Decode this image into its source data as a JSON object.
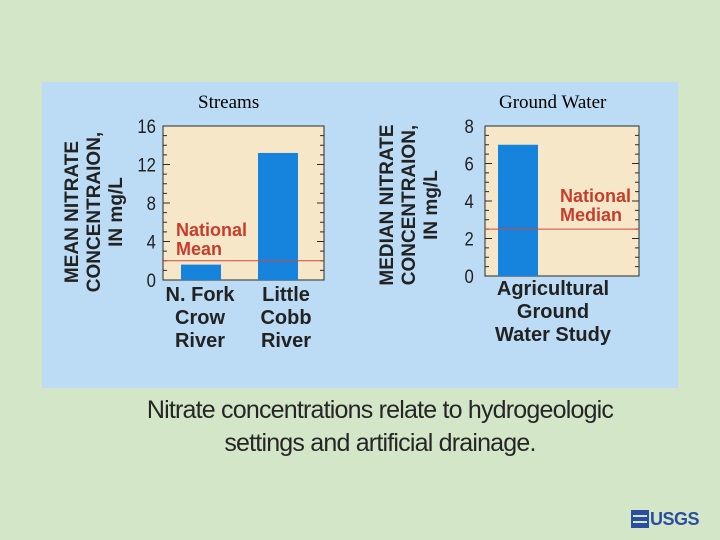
{
  "slide": {
    "caption_line1": "Nitrate concentrations relate to hydrogeologic",
    "caption_line2": "settings and artificial drainage.",
    "logo_text": "USGS"
  },
  "colors": {
    "background": "#d3e6c8",
    "panel": "#bcdcf6",
    "plot_area": "#f5e7c8",
    "bar": "#1684dc",
    "reference_line": "#d04a3c",
    "reference_label": "#c83c2c",
    "axis_text": "#1f1f1f",
    "logo": "#2b4fa0"
  },
  "chart_data": [
    {
      "type": "bar",
      "panel_title": "Streams",
      "ylabel_lines": [
        "MEAN NITRATE",
        "CONCENTRAION,",
        "IN mg/L"
      ],
      "ylim": [
        0,
        16
      ],
      "yticks": [
        "0",
        "4",
        "8",
        "12",
        "16"
      ],
      "categories": [
        [
          "N. Fork",
          "Crow",
          "River"
        ],
        [
          "Little",
          "Cobb",
          "River"
        ]
      ],
      "values": [
        1.6,
        13.2
      ],
      "reference_line": {
        "value": 2.0,
        "label_lines": [
          "National",
          "Mean"
        ]
      },
      "grid": false
    },
    {
      "type": "bar",
      "panel_title": "Ground Water",
      "ylabel_lines": [
        "MEDIAN NITRATE",
        "CONCENTRAION,",
        "IN mg/L"
      ],
      "ylim": [
        0,
        8
      ],
      "yticks": [
        "0",
        "2",
        "4",
        "6",
        "8"
      ],
      "categories": [
        [
          "Agricultural",
          "Ground",
          "Water Study"
        ]
      ],
      "values": [
        7.0
      ],
      "reference_line": {
        "value": 2.5,
        "label_lines": [
          "National",
          "Median"
        ]
      },
      "grid": false
    }
  ]
}
